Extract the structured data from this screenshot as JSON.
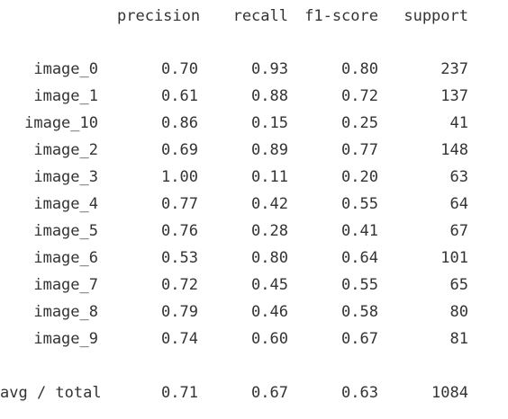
{
  "header": {
    "precision": "precision",
    "recall": "recall",
    "f1": "f1-score",
    "support": "support"
  },
  "rows": [
    {
      "label": "image_0",
      "precision": "0.70",
      "recall": "0.93",
      "f1": "0.80",
      "support": "237"
    },
    {
      "label": "image_1",
      "precision": "0.61",
      "recall": "0.88",
      "f1": "0.72",
      "support": "137"
    },
    {
      "label": "image_10",
      "precision": "0.86",
      "recall": "0.15",
      "f1": "0.25",
      "support": "41"
    },
    {
      "label": "image_2",
      "precision": "0.69",
      "recall": "0.89",
      "f1": "0.77",
      "support": "148"
    },
    {
      "label": "image_3",
      "precision": "1.00",
      "recall": "0.11",
      "f1": "0.20",
      "support": "63"
    },
    {
      "label": "image_4",
      "precision": "0.77",
      "recall": "0.42",
      "f1": "0.55",
      "support": "64"
    },
    {
      "label": "image_5",
      "precision": "0.76",
      "recall": "0.28",
      "f1": "0.41",
      "support": "67"
    },
    {
      "label": "image_6",
      "precision": "0.53",
      "recall": "0.80",
      "f1": "0.64",
      "support": "101"
    },
    {
      "label": "image_7",
      "precision": "0.72",
      "recall": "0.45",
      "f1": "0.55",
      "support": "65"
    },
    {
      "label": "image_8",
      "precision": "0.79",
      "recall": "0.46",
      "f1": "0.58",
      "support": "80"
    },
    {
      "label": "image_9",
      "precision": "0.74",
      "recall": "0.60",
      "f1": "0.67",
      "support": "81"
    }
  ],
  "summary": {
    "label": "avg / total",
    "precision": "0.71",
    "recall": "0.67",
    "f1": "0.63",
    "support": "1084"
  }
}
